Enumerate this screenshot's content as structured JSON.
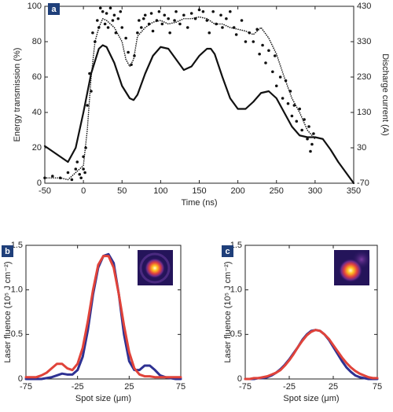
{
  "chart_data": [
    {
      "type": "line",
      "panel_label": "a",
      "xlabel": "Time (ns)",
      "ylabel": "Energy transmission (%)",
      "y2label": "Discharge current (A)",
      "xlim": [
        -50,
        350
      ],
      "xticks": [
        -50,
        0,
        50,
        100,
        150,
        200,
        250,
        300,
        350
      ],
      "ylim": [
        0,
        100
      ],
      "yticks": [
        0,
        20,
        40,
        60,
        80,
        100
      ],
      "y2lim": [
        -70,
        430
      ],
      "y2ticks": [
        -70,
        30,
        130,
        230,
        330,
        430
      ],
      "series": [
        {
          "type": "scatter",
          "color": "#111111",
          "x": [
            -50,
            -40,
            -30,
            -20,
            -15,
            -10,
            -8,
            -5,
            -3,
            0,
            0,
            2,
            3,
            5,
            8,
            10,
            12,
            15,
            18,
            20,
            22,
            25,
            28,
            30,
            32,
            35,
            38,
            40,
            42,
            45,
            48,
            50,
            55,
            58,
            62,
            66,
            70,
            72,
            75,
            78,
            80,
            85,
            88,
            90,
            95,
            98,
            102,
            105,
            110,
            112,
            118,
            120,
            125,
            130,
            135,
            140,
            145,
            150,
            155,
            160,
            163,
            168,
            172,
            178,
            180,
            185,
            190,
            195,
            198,
            205,
            210,
            215,
            220,
            225,
            228,
            232,
            236,
            240,
            245,
            248,
            250,
            255,
            258,
            262,
            265,
            268,
            270,
            273,
            276,
            280,
            283,
            286,
            290,
            292,
            294,
            296,
            298
          ],
          "values": [
            3,
            4,
            3,
            6,
            2,
            8,
            12,
            5,
            3,
            15,
            8,
            6,
            20,
            44,
            62,
            52,
            85,
            80,
            92,
            88,
            99,
            97,
            90,
            96,
            88,
            99,
            92,
            95,
            85,
            93,
            97,
            88,
            82,
            74,
            67,
            72,
            85,
            92,
            88,
            93,
            95,
            90,
            96,
            86,
            92,
            97,
            90,
            95,
            93,
            85,
            92,
            97,
            90,
            95,
            88,
            96,
            93,
            98,
            97,
            92,
            85,
            97,
            90,
            95,
            88,
            93,
            97,
            88,
            84,
            92,
            80,
            85,
            80,
            87,
            73,
            78,
            68,
            75,
            63,
            72,
            55,
            60,
            48,
            58,
            45,
            52,
            38,
            44,
            35,
            42,
            30,
            36,
            25,
            32,
            18,
            22,
            28
          ]
        },
        {
          "type": "line",
          "style": "dotted",
          "color": "#111111",
          "x": [
            -50,
            -30,
            -20,
            -10,
            0,
            5,
            10,
            15,
            20,
            25,
            30,
            40,
            50,
            55,
            60,
            65,
            70,
            80,
            90,
            100,
            110,
            120,
            130,
            140,
            150,
            160,
            170,
            180,
            190,
            200,
            210,
            220,
            230,
            240,
            250,
            260,
            270,
            280,
            290,
            300
          ],
          "values": [
            3,
            3,
            2,
            6,
            10,
            30,
            60,
            80,
            88,
            93,
            92,
            88,
            80,
            70,
            66,
            70,
            83,
            88,
            91,
            92,
            90,
            91,
            93,
            93,
            94,
            93,
            90,
            90,
            88,
            87,
            86,
            84,
            88,
            82,
            73,
            60,
            48,
            40,
            30,
            25
          ]
        },
        {
          "type": "line",
          "style": "solid",
          "axis": "y2",
          "color": "#111111",
          "x": [
            -50,
            -40,
            -30,
            -20,
            -10,
            0,
            10,
            20,
            25,
            30,
            40,
            50,
            60,
            65,
            70,
            80,
            90,
            100,
            110,
            120,
            130,
            140,
            150,
            160,
            165,
            170,
            180,
            190,
            200,
            210,
            220,
            230,
            240,
            250,
            260,
            270,
            280,
            290,
            300,
            310,
            320,
            330,
            340,
            350
          ],
          "values": [
            35,
            20,
            5,
            -10,
            30,
            130,
            240,
            310,
            320,
            315,
            270,
            205,
            170,
            165,
            180,
            240,
            290,
            315,
            310,
            280,
            250,
            260,
            290,
            310,
            310,
            295,
            230,
            170,
            140,
            140,
            160,
            185,
            190,
            170,
            130,
            90,
            65,
            60,
            60,
            55,
            25,
            -10,
            -40,
            -70
          ]
        }
      ]
    },
    {
      "type": "line",
      "panel_label": "b",
      "xlabel": "Spot size (μm)",
      "ylabel": "Laser fluence (10⁵ J cm⁻²)",
      "xlim": [
        -75,
        75
      ],
      "xticks": [
        -75,
        -25,
        25,
        75
      ],
      "ylim": [
        0,
        1.5
      ],
      "yticks": [
        0,
        0.5,
        {
          "value": 1,
          "label": "1.0"
        },
        1.5
      ],
      "x": [
        -75,
        -70,
        -65,
        -60,
        -55,
        -50,
        -45,
        -40,
        -35,
        -30,
        -25,
        -20,
        -15,
        -10,
        -5,
        0,
        5,
        10,
        15,
        20,
        25,
        30,
        35,
        40,
        45,
        50,
        55,
        60,
        65,
        70,
        75
      ],
      "series": [
        {
          "color": "#2e3192",
          "values": [
            0,
            0,
            0,
            0,
            0.01,
            0.02,
            0.04,
            0.06,
            0.05,
            0.05,
            0.1,
            0.25,
            0.55,
            0.95,
            1.25,
            1.38,
            1.4,
            1.3,
            0.95,
            0.5,
            0.2,
            0.1,
            0.1,
            0.15,
            0.15,
            0.1,
            0.04,
            0.02,
            0.01,
            0,
            0
          ]
        },
        {
          "color": "#e0433a",
          "values": [
            0.02,
            0.02,
            0.02,
            0.04,
            0.07,
            0.12,
            0.17,
            0.17,
            0.12,
            0.1,
            0.17,
            0.35,
            0.65,
            1.0,
            1.28,
            1.38,
            1.38,
            1.25,
            0.95,
            0.6,
            0.3,
            0.12,
            0.05,
            0.03,
            0.03,
            0.02,
            0.02,
            0.02,
            0.02,
            0.02,
            0.02
          ]
        }
      ]
    },
    {
      "type": "line",
      "panel_label": "c",
      "xlabel": "Spot size (μm)",
      "ylabel": "Laser fluence (10⁵ J cm⁻²)",
      "xlim": [
        -75,
        75
      ],
      "xticks": [
        -75,
        -25,
        25,
        75
      ],
      "ylim": [
        0,
        1.5
      ],
      "yticks": [
        0,
        0.5,
        {
          "value": 1,
          "label": "1.0"
        },
        1.5
      ],
      "x": [
        -75,
        -70,
        -65,
        -60,
        -55,
        -50,
        -45,
        -40,
        -35,
        -30,
        -25,
        -20,
        -15,
        -10,
        -5,
        0,
        5,
        10,
        15,
        20,
        25,
        30,
        35,
        40,
        45,
        50,
        55,
        60,
        65,
        70,
        75
      ],
      "series": [
        {
          "color": "#2e3192",
          "values": [
            0,
            0,
            0,
            0.01,
            0.01,
            0.02,
            0.04,
            0.07,
            0.11,
            0.16,
            0.22,
            0.29,
            0.36,
            0.44,
            0.5,
            0.54,
            0.55,
            0.54,
            0.5,
            0.44,
            0.36,
            0.28,
            0.2,
            0.13,
            0.08,
            0.04,
            0.02,
            0.01,
            0,
            0,
            0
          ]
        },
        {
          "color": "#e0433a",
          "values": [
            0,
            0,
            0.01,
            0.01,
            0.02,
            0.03,
            0.05,
            0.07,
            0.1,
            0.15,
            0.21,
            0.28,
            0.36,
            0.43,
            0.49,
            0.53,
            0.55,
            0.54,
            0.5,
            0.45,
            0.38,
            0.31,
            0.24,
            0.18,
            0.13,
            0.09,
            0.06,
            0.04,
            0.02,
            0.01,
            0.01
          ]
        }
      ]
    }
  ]
}
